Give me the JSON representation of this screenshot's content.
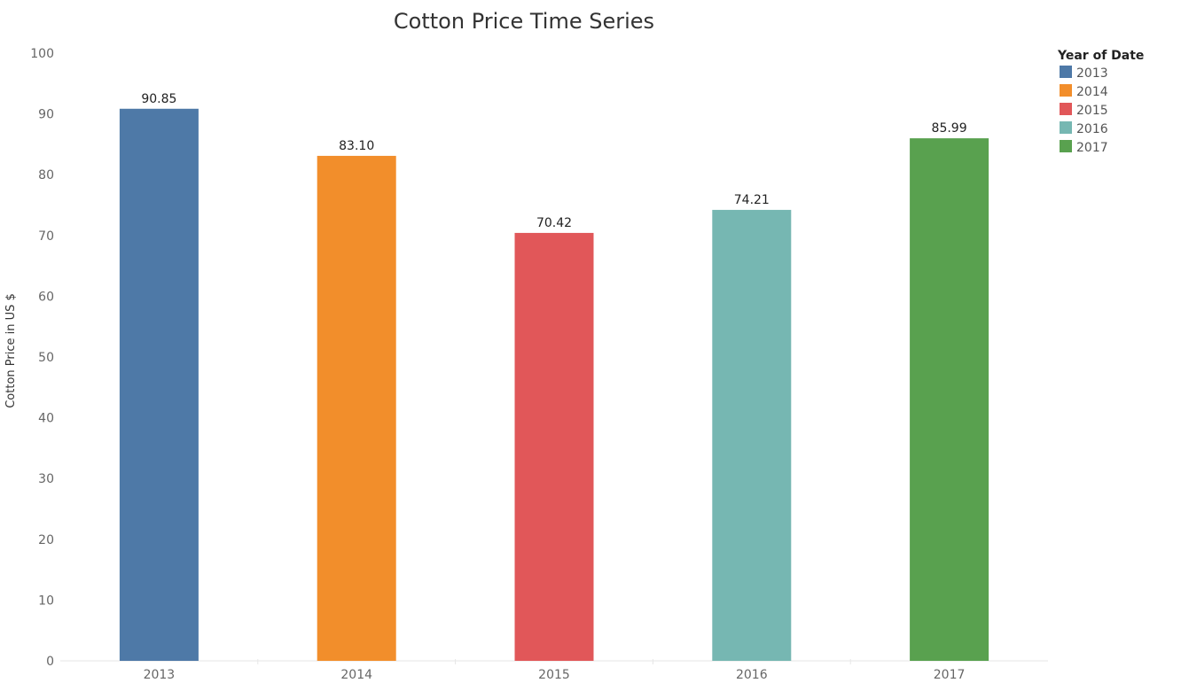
{
  "chart_data": {
    "type": "bar",
    "title": "Cotton Price Time Series",
    "xlabel": "",
    "ylabel": "Cotton Price in US $",
    "categories": [
      "2013",
      "2014",
      "2015",
      "2016",
      "2017"
    ],
    "values": [
      90.85,
      83.1,
      70.42,
      74.21,
      85.99
    ],
    "data_labels": [
      "90.85",
      "83.10",
      "70.42",
      "74.21",
      "85.99"
    ],
    "ylim": [
      0,
      100
    ],
    "yticks": [
      0,
      10,
      20,
      30,
      40,
      50,
      60,
      70,
      80,
      90,
      100
    ],
    "grid": false,
    "legend": {
      "title": "Year of Date",
      "placement": "top-right",
      "entries": [
        "2013",
        "2014",
        "2015",
        "2016",
        "2017"
      ]
    },
    "colors": [
      "#4e79a7",
      "#f28e2b",
      "#e15759",
      "#76b7b2",
      "#59a14f"
    ]
  }
}
